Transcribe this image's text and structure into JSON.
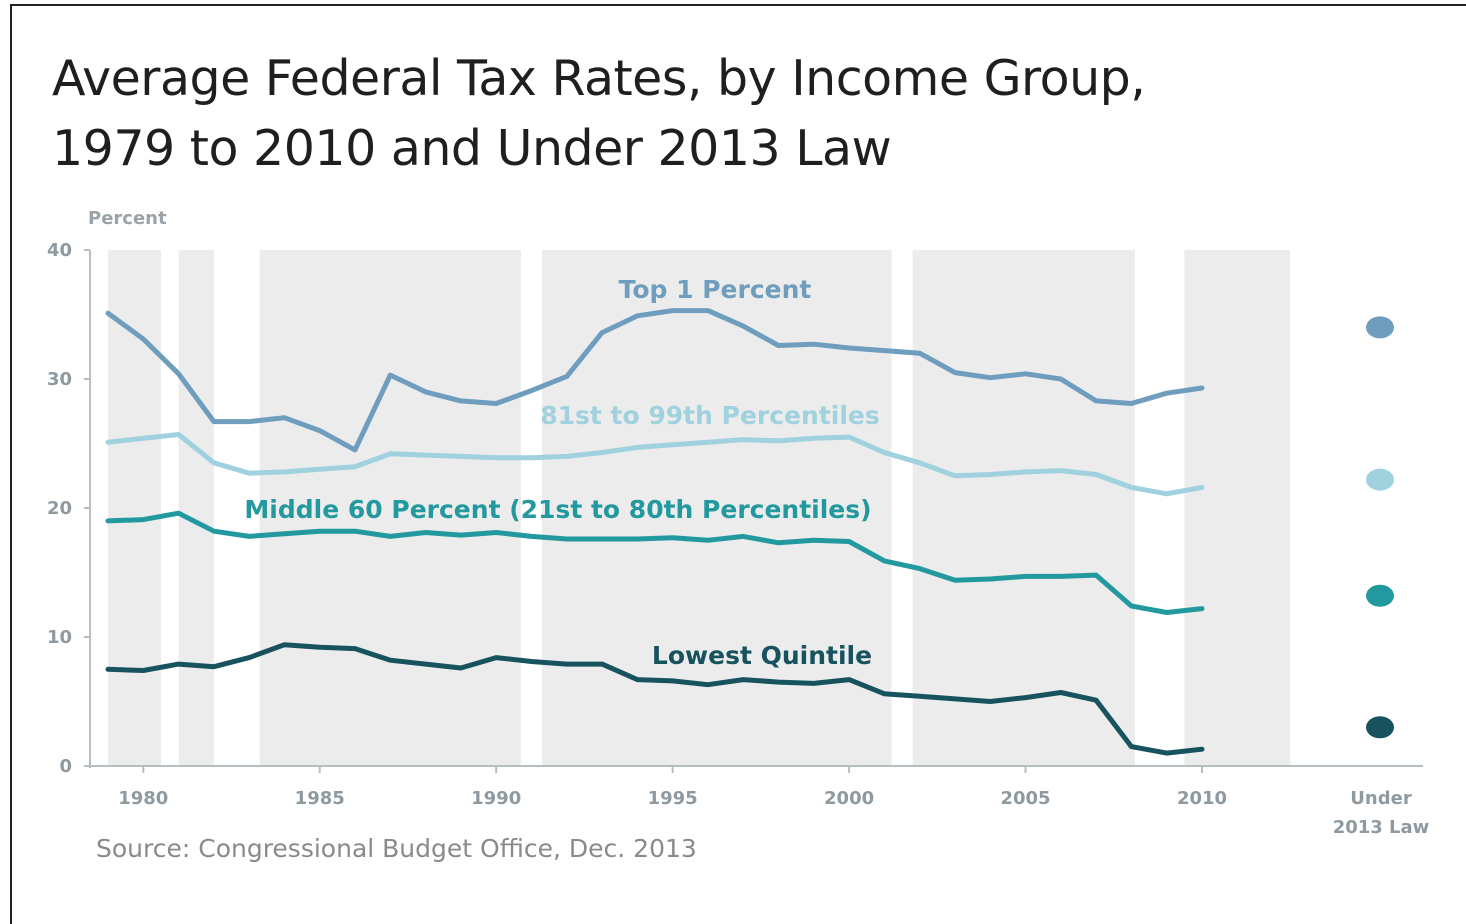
{
  "chart_data": {
    "type": "line",
    "title": [
      "Average Federal Tax Rates, by Income Group,",
      "1979 to 2010 and Under 2013 Law"
    ],
    "ylabel": "Percent",
    "ylim": [
      0,
      40
    ],
    "yticks": [
      0,
      10,
      20,
      30,
      40
    ],
    "xlim": [
      1979,
      2010
    ],
    "xticks": [
      1980,
      1985,
      1990,
      1995,
      2000,
      2005,
      2010
    ],
    "x_extra_label": [
      "Under",
      "2013 Law"
    ],
    "source": "Source: Congressional Budget Office, Dec. 2013",
    "recession_shading": [
      [
        1979,
        1980.5
      ],
      [
        1981,
        1982
      ],
      [
        1983.3,
        1990.7
      ],
      [
        1991.3,
        2001.2
      ],
      [
        2001.8,
        2008.1
      ],
      [
        2009.5,
        2012.5
      ]
    ],
    "x": [
      1979,
      1980,
      1981,
      1982,
      1983,
      1984,
      1985,
      1986,
      1987,
      1988,
      1989,
      1990,
      1991,
      1992,
      1993,
      1994,
      1995,
      1996,
      1997,
      1998,
      1999,
      2000,
      2001,
      2002,
      2003,
      2004,
      2005,
      2006,
      2007,
      2008,
      2009,
      2010
    ],
    "series": [
      {
        "name": "Top 1 Percent",
        "color": "#6e9dbd",
        "values": [
          35.1,
          33.1,
          30.4,
          26.7,
          26.7,
          27.0,
          26.0,
          24.5,
          30.3,
          29.0,
          28.3,
          28.1,
          29.1,
          30.2,
          33.6,
          34.9,
          35.3,
          35.3,
          34.1,
          32.6,
          32.7,
          32.4,
          32.2,
          32.0,
          30.5,
          30.1,
          30.4,
          30.0,
          28.3,
          28.1,
          28.9,
          29.3
        ],
        "under_2013_law": 34.0
      },
      {
        "name": "81st to 99th Percentiles",
        "color": "#9fd1de",
        "values": [
          25.1,
          25.4,
          25.7,
          23.5,
          22.7,
          22.8,
          23.0,
          23.2,
          24.2,
          24.1,
          24.0,
          23.9,
          23.9,
          24.0,
          24.3,
          24.7,
          24.9,
          25.1,
          25.3,
          25.2,
          25.4,
          25.5,
          24.3,
          23.5,
          22.5,
          22.6,
          22.8,
          22.9,
          22.6,
          21.6,
          21.1,
          21.6
        ],
        "under_2013_law": 22.2
      },
      {
        "name": "Middle 60 Percent (21st to 80th Percentiles)",
        "color": "#22999e",
        "values": [
          19.0,
          19.1,
          19.6,
          18.2,
          17.8,
          18.0,
          18.2,
          18.2,
          17.8,
          18.1,
          17.9,
          18.1,
          17.8,
          17.6,
          17.6,
          17.6,
          17.7,
          17.5,
          17.8,
          17.3,
          17.5,
          17.4,
          15.9,
          15.3,
          14.4,
          14.5,
          14.7,
          14.7,
          14.8,
          12.4,
          11.9,
          12.2
        ],
        "under_2013_law": 13.2
      },
      {
        "name": "Lowest Quintile",
        "color": "#17525f",
        "values": [
          7.5,
          7.4,
          7.9,
          7.7,
          8.4,
          9.4,
          9.2,
          9.1,
          8.2,
          7.9,
          7.6,
          8.4,
          8.1,
          7.9,
          7.9,
          6.7,
          6.6,
          6.3,
          6.7,
          6.5,
          6.4,
          6.7,
          5.6,
          5.4,
          5.2,
          5.0,
          5.3,
          5.7,
          5.1,
          1.5,
          1.0,
          1.3
        ],
        "under_2013_law": 3.0
      }
    ]
  }
}
